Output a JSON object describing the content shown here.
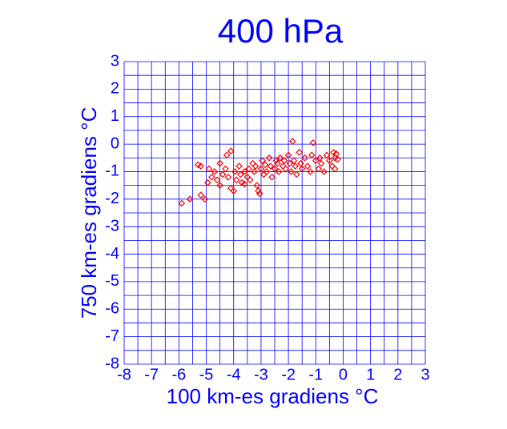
{
  "chart_data": {
    "type": "scatter",
    "title": "400 hPa",
    "x_label": "100 km-es gradiens °C",
    "y_label": "750 km-es gradiens °C",
    "xlim": [
      -8,
      3
    ],
    "ylim": [
      -8,
      3
    ],
    "xticks": [
      -8,
      -7,
      -6,
      -5,
      -4,
      -3,
      -2,
      -1,
      0,
      1,
      2,
      3
    ],
    "yticks": [
      -8,
      -7,
      -6,
      -5,
      -4,
      -3,
      -2,
      -1,
      0,
      1,
      2,
      3
    ],
    "grid": true,
    "grid_step": 0.5,
    "grid_color": "#0000ff",
    "text_color": "#0000ff",
    "series": [
      {
        "color": "#ff0000",
        "x": [
          -5.9,
          -5.6,
          -5.2,
          -5.05,
          -5.3,
          -5.2,
          -4.95,
          -4.8,
          -4.7,
          -4.6,
          -4.5,
          -4.4,
          -4.3,
          -4.2,
          -4.1,
          -4.0,
          -3.95,
          -3.9,
          -3.8,
          -3.75,
          -3.7,
          -3.6,
          -3.5,
          -3.45,
          -3.4,
          -3.3,
          -3.25,
          -3.2,
          -3.15,
          -3.1,
          -3.05,
          -3.0,
          -2.95,
          -2.9,
          -2.85,
          -2.8,
          -2.7,
          -2.65,
          -2.6,
          -2.5,
          -2.45,
          -2.4,
          -2.35,
          -2.3,
          -2.2,
          -2.15,
          -2.1,
          -2.0,
          -1.95,
          -1.9,
          -1.85,
          -1.8,
          -1.75,
          -1.7,
          -1.6,
          -1.55,
          -1.5,
          -1.4,
          -1.3,
          -1.2,
          -1.15,
          -1.1,
          -1.0,
          -0.9,
          -0.85,
          -0.8,
          -0.7,
          -0.6,
          -0.5,
          -0.4,
          -0.35,
          -0.3,
          -0.25,
          -0.2,
          -0.3,
          -4.9,
          -4.25,
          -4.1,
          -4.5,
          -3.6
        ],
        "y": [
          -2.15,
          -2.0,
          -1.85,
          -2.0,
          -0.75,
          -0.8,
          -1.4,
          -1.2,
          -1.0,
          -1.3,
          -1.5,
          -1.1,
          -0.9,
          -1.2,
          -1.6,
          -1.7,
          -1.0,
          -1.3,
          -0.8,
          -1.1,
          -1.4,
          -1.0,
          -1.2,
          -0.9,
          -1.3,
          -0.7,
          -1.0,
          -0.8,
          -1.5,
          -1.7,
          -1.8,
          -0.9,
          -0.6,
          -1.1,
          -0.75,
          -1.0,
          -0.5,
          -0.8,
          -1.2,
          -0.9,
          -0.6,
          -0.7,
          -1.0,
          -0.5,
          -0.8,
          -0.6,
          -0.9,
          -0.4,
          -0.7,
          -1.0,
          0.1,
          -0.6,
          -0.8,
          -1.1,
          -0.3,
          -0.7,
          -0.9,
          -0.5,
          -0.8,
          -1.0,
          -0.4,
          0.05,
          -0.6,
          -0.9,
          -0.5,
          -0.7,
          -1.0,
          -0.4,
          -0.6,
          -0.8,
          -0.3,
          -0.5,
          -0.35,
          -0.55,
          -0.9,
          -0.9,
          -0.4,
          -0.25,
          -0.7,
          -1.45
        ]
      }
    ]
  }
}
